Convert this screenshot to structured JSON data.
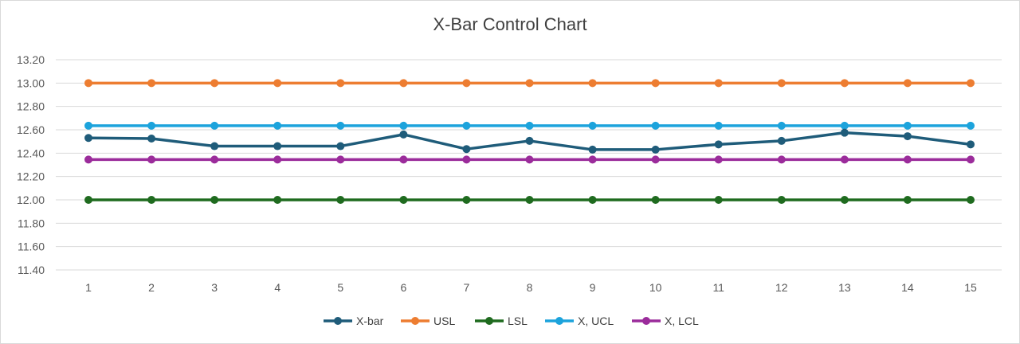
{
  "chart_data": {
    "type": "line",
    "title": "X-Bar Control Chart",
    "categories": [
      "1",
      "2",
      "3",
      "4",
      "5",
      "6",
      "7",
      "8",
      "9",
      "10",
      "11",
      "12",
      "13",
      "14",
      "15"
    ],
    "ylim": [
      11.4,
      13.2
    ],
    "yticks": [
      "13.20",
      "13.00",
      "12.80",
      "12.60",
      "12.40",
      "12.20",
      "12.00",
      "11.80",
      "11.60",
      "11.40"
    ],
    "grid": true,
    "legend_position": "bottom",
    "series": [
      {
        "name": "X-bar",
        "color": "#1f5c7a",
        "values": [
          12.53,
          12.525,
          12.46,
          12.46,
          12.46,
          12.56,
          12.435,
          12.505,
          12.43,
          12.43,
          12.475,
          12.505,
          12.575,
          12.545,
          12.475
        ]
      },
      {
        "name": "USL",
        "color": "#ed7d31",
        "values": [
          13.0,
          13.0,
          13.0,
          13.0,
          13.0,
          13.0,
          13.0,
          13.0,
          13.0,
          13.0,
          13.0,
          13.0,
          13.0,
          13.0,
          13.0
        ]
      },
      {
        "name": "LSL",
        "color": "#1f6b1f",
        "values": [
          12.0,
          12.0,
          12.0,
          12.0,
          12.0,
          12.0,
          12.0,
          12.0,
          12.0,
          12.0,
          12.0,
          12.0,
          12.0,
          12.0,
          12.0
        ]
      },
      {
        "name": "X, UCL",
        "color": "#1ca3dc",
        "values": [
          12.635,
          12.635,
          12.635,
          12.635,
          12.635,
          12.635,
          12.635,
          12.635,
          12.635,
          12.635,
          12.635,
          12.635,
          12.635,
          12.635,
          12.635
        ]
      },
      {
        "name": "X, LCL",
        "color": "#9b2c9b",
        "values": [
          12.345,
          12.345,
          12.345,
          12.345,
          12.345,
          12.345,
          12.345,
          12.345,
          12.345,
          12.345,
          12.345,
          12.345,
          12.345,
          12.345,
          12.345
        ]
      }
    ]
  }
}
